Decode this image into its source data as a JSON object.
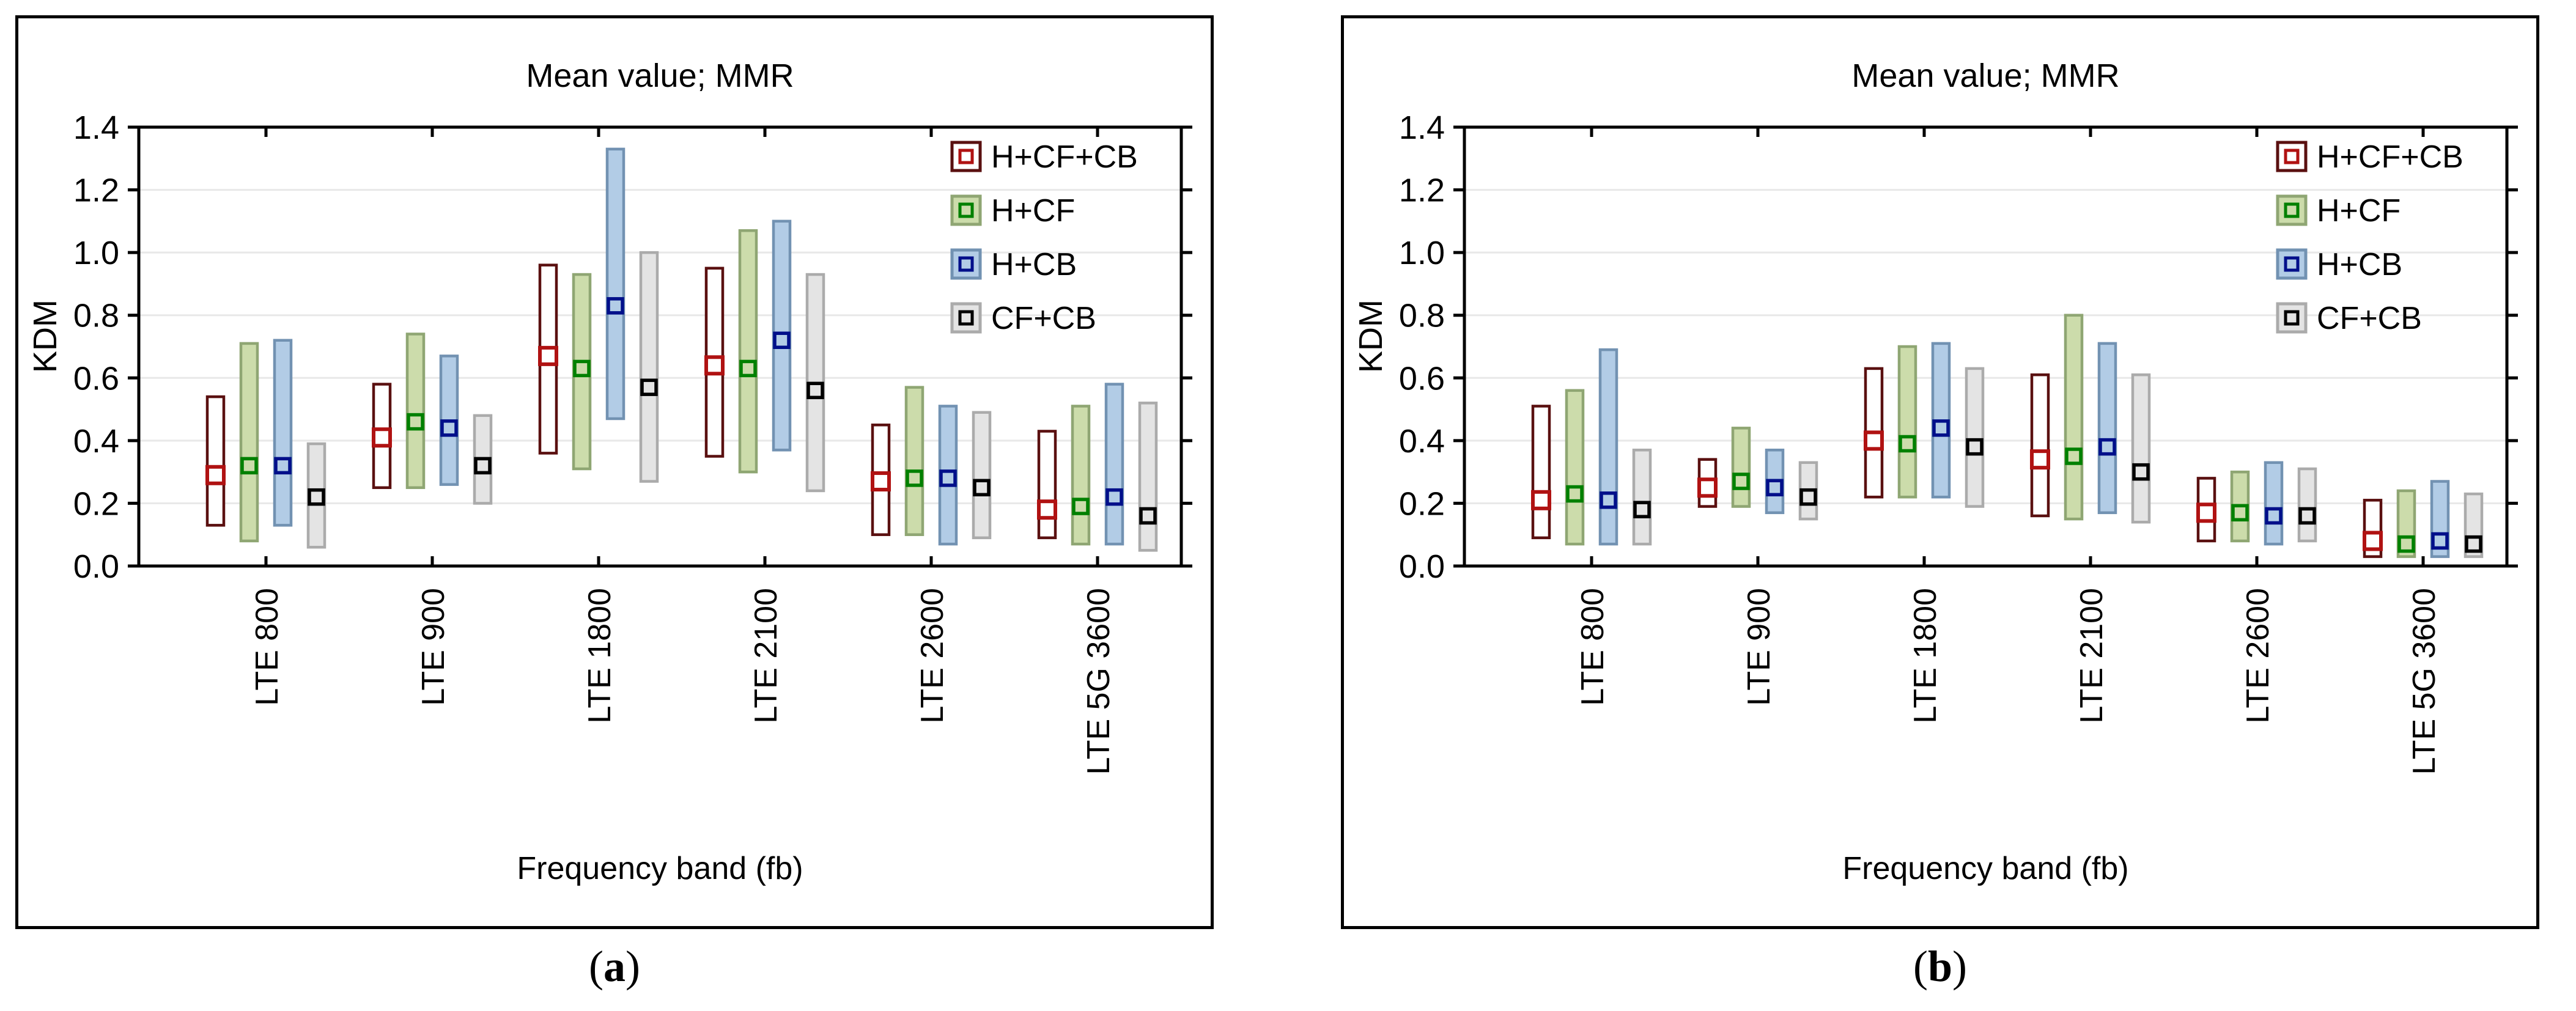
{
  "figure": {
    "background": "#ffffff",
    "panel_border_color": "#000000",
    "grid_color": "#e8e8e8",
    "text_color": "#000000",
    "captions": [
      {
        "open": "(",
        "label": "a",
        "close": ")"
      },
      {
        "open": "(",
        "label": "b",
        "close": ")"
      }
    ]
  },
  "chart_data": [
    {
      "panel": "a",
      "type": "bar",
      "subtype": "floating-range-bars-with-mean-marker",
      "title": "Mean value; MMR",
      "xlabel": "Frequency band (fb)",
      "ylabel": "KDM",
      "ylim": [
        0.0,
        1.4
      ],
      "ytick_step": 0.2,
      "grid": true,
      "legend_position": "top-right-inside",
      "categories": [
        "LTE 800",
        "LTE 900",
        "LTE 1800",
        "LTE 2100",
        "LTE 2600",
        "LTE 5G 3600"
      ],
      "series": [
        {
          "name": "H+CF+CB",
          "bar_fill": "#ffffff",
          "bar_border": "#5a1010",
          "marker_border": "#b01212",
          "marker_fill": "#ffffff",
          "low": [
            0.13,
            0.25,
            0.36,
            0.35,
            0.1,
            0.09
          ],
          "high": [
            0.54,
            0.58,
            0.96,
            0.95,
            0.45,
            0.43
          ],
          "mean": [
            0.29,
            0.41,
            0.67,
            0.64,
            0.27,
            0.18
          ]
        },
        {
          "name": "H+CF",
          "bar_fill": "#ccdcab",
          "bar_border": "#8fa673",
          "marker_border": "#008000",
          "marker_fill": "#ccdcab",
          "low": [
            0.08,
            0.25,
            0.31,
            0.3,
            0.1,
            0.07
          ],
          "high": [
            0.71,
            0.74,
            0.93,
            1.07,
            0.57,
            0.51
          ],
          "mean": [
            0.32,
            0.46,
            0.63,
            0.63,
            0.28,
            0.19
          ]
        },
        {
          "name": "H+CB",
          "bar_fill": "#b2cce6",
          "bar_border": "#7292b2",
          "marker_border": "#000f8a",
          "marker_fill": "#b2cce6",
          "low": [
            0.13,
            0.26,
            0.47,
            0.37,
            0.07,
            0.07
          ],
          "high": [
            0.72,
            0.67,
            1.33,
            1.1,
            0.51,
            0.58
          ],
          "mean": [
            0.32,
            0.44,
            0.83,
            0.72,
            0.28,
            0.22
          ]
        },
        {
          "name": "CF+CB",
          "bar_fill": "#e4e4e4",
          "bar_border": "#ababab",
          "marker_border": "#000000",
          "marker_fill": "#e4e4e4",
          "low": [
            0.06,
            0.2,
            0.27,
            0.24,
            0.09,
            0.05
          ],
          "high": [
            0.39,
            0.48,
            1.0,
            0.93,
            0.49,
            0.52
          ],
          "mean": [
            0.22,
            0.32,
            0.57,
            0.56,
            0.25,
            0.16
          ]
        }
      ]
    },
    {
      "panel": "b",
      "type": "bar",
      "subtype": "floating-range-bars-with-mean-marker",
      "title": "Mean value; MMR",
      "xlabel": "Frequency band (fb)",
      "ylabel": "KDM",
      "ylim": [
        0.0,
        1.4
      ],
      "ytick_step": 0.2,
      "grid": true,
      "legend_position": "top-right-inside",
      "categories": [
        "LTE 800",
        "LTE 900",
        "LTE 1800",
        "LTE 2100",
        "LTE 2600",
        "LTE 5G 3600"
      ],
      "series": [
        {
          "name": "H+CF+CB",
          "bar_fill": "#ffffff",
          "bar_border": "#5a1010",
          "marker_border": "#b01212",
          "marker_fill": "#ffffff",
          "low": [
            0.09,
            0.19,
            0.22,
            0.16,
            0.08,
            0.03
          ],
          "high": [
            0.51,
            0.34,
            0.63,
            0.61,
            0.28,
            0.21
          ],
          "mean": [
            0.21,
            0.25,
            0.4,
            0.34,
            0.17,
            0.08
          ]
        },
        {
          "name": "H+CF",
          "bar_fill": "#ccdcab",
          "bar_border": "#8fa673",
          "marker_border": "#008000",
          "marker_fill": "#ccdcab",
          "low": [
            0.07,
            0.19,
            0.22,
            0.15,
            0.08,
            0.03
          ],
          "high": [
            0.56,
            0.44,
            0.7,
            0.8,
            0.3,
            0.24
          ],
          "mean": [
            0.23,
            0.27,
            0.39,
            0.35,
            0.17,
            0.07
          ]
        },
        {
          "name": "H+CB",
          "bar_fill": "#b2cce6",
          "bar_border": "#7292b2",
          "marker_border": "#000f8a",
          "marker_fill": "#b2cce6",
          "low": [
            0.07,
            0.17,
            0.22,
            0.17,
            0.07,
            0.03
          ],
          "high": [
            0.69,
            0.37,
            0.71,
            0.71,
            0.33,
            0.27
          ],
          "mean": [
            0.21,
            0.25,
            0.44,
            0.38,
            0.16,
            0.08
          ]
        },
        {
          "name": "CF+CB",
          "bar_fill": "#e4e4e4",
          "bar_border": "#ababab",
          "marker_border": "#000000",
          "marker_fill": "#e4e4e4",
          "low": [
            0.07,
            0.15,
            0.19,
            0.14,
            0.08,
            0.03
          ],
          "high": [
            0.37,
            0.33,
            0.63,
            0.61,
            0.31,
            0.23
          ],
          "mean": [
            0.18,
            0.22,
            0.38,
            0.3,
            0.16,
            0.07
          ]
        }
      ]
    }
  ]
}
